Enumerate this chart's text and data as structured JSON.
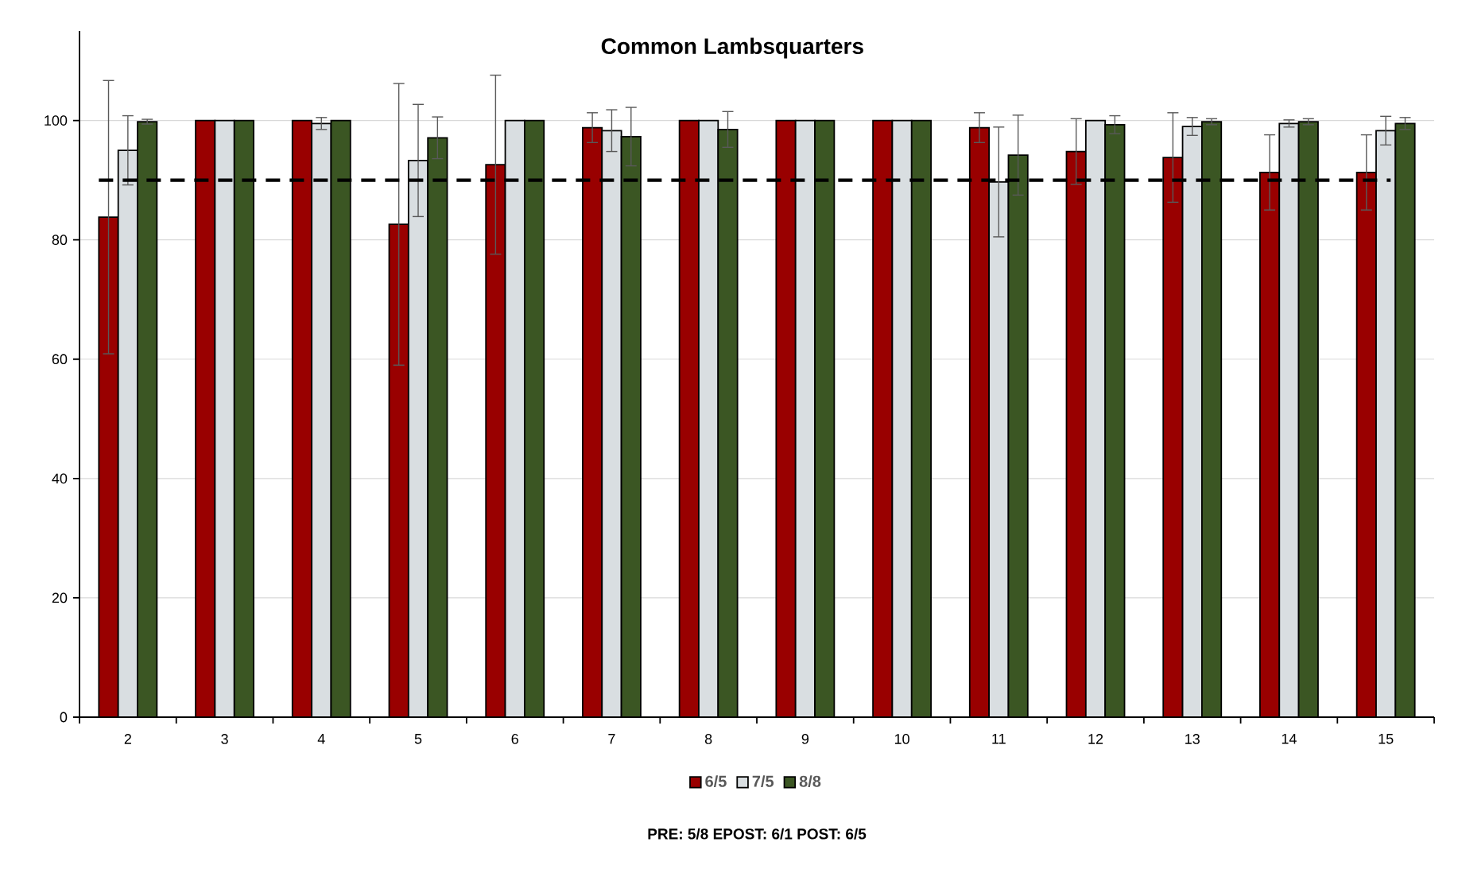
{
  "chart_data": {
    "type": "bar",
    "title": "Common Lambsquarters",
    "categories": [
      "2",
      "3",
      "4",
      "5",
      "6",
      "7",
      "8",
      "9",
      "10",
      "11",
      "12",
      "13",
      "14",
      "15"
    ],
    "series": [
      {
        "name": "6/5",
        "color": "#990000",
        "values": [
          83.8,
          100,
          100,
          82.6,
          92.6,
          98.8,
          100,
          100,
          100,
          98.8,
          94.8,
          93.8,
          91.3,
          91.3
        ],
        "errors": [
          22.9,
          null,
          null,
          23.6,
          15,
          2.5,
          null,
          null,
          null,
          2.5,
          5.5,
          7.5,
          6.3,
          6.3
        ]
      },
      {
        "name": "7/5",
        "color": "#d9dee1",
        "values": [
          95,
          100,
          99.5,
          93.3,
          100,
          98.3,
          100,
          100,
          100,
          89.7,
          100,
          99,
          99.5,
          98.3
        ],
        "errors": [
          5.8,
          null,
          1,
          9.4,
          null,
          3.5,
          null,
          null,
          null,
          9.2,
          null,
          1.5,
          0.6,
          2.4
        ]
      },
      {
        "name": "8/8",
        "color": "#3b5623",
        "values": [
          99.8,
          100,
          100,
          97.1,
          100,
          97.3,
          98.5,
          100,
          100,
          94.2,
          99.3,
          99.8,
          99.8,
          99.5
        ],
        "errors": [
          0.4,
          null,
          null,
          3.5,
          null,
          4.9,
          3,
          null,
          null,
          6.7,
          1.5,
          0.5,
          0.5,
          1
        ]
      }
    ],
    "ylim": [
      0,
      115
    ],
    "yticks": [
      0,
      20,
      40,
      60,
      80,
      100
    ],
    "grid": "y",
    "legend": "bottom",
    "ref_lines": [
      {
        "axis": "y",
        "value": 90,
        "color": "#000000",
        "line_style": "dashed"
      }
    ],
    "annotations": [
      "PRE: 5/8   EPOST: 6/1   POST: 6/5"
    ]
  }
}
